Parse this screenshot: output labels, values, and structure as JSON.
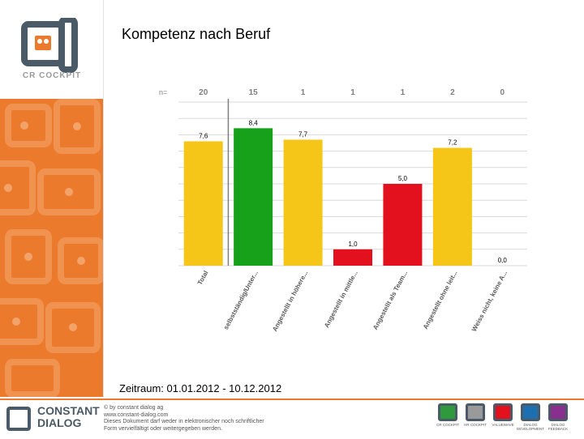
{
  "header": {
    "title": "Kompetenz nach Beruf",
    "date_range": "Zeitraum: 01.01.2012 - 10.12.2012"
  },
  "sidebar": {
    "logo_text": "CR COCKPIT"
  },
  "colors": {
    "accent": "#ec7a2c",
    "yellow": "#f5c518",
    "green": "#17a11b",
    "red": "#e3101d",
    "dark": "#4a5a66"
  },
  "chart_data": {
    "type": "bar",
    "n_label": "n=",
    "categories": [
      "Total",
      "selbstständig/Unter...",
      "Angestellt in höhere...",
      "Angestellt in mittle...",
      "Angestellt als Team...",
      "Angestellt ohne leit...",
      "Weiss nicht, keine A..."
    ],
    "n_values": [
      "20",
      "15",
      "1",
      "1",
      "1",
      "2",
      "0"
    ],
    "values": [
      7.6,
      8.4,
      7.7,
      1.0,
      5.0,
      7.2,
      0.0
    ],
    "value_labels": [
      "7,6",
      "8,4",
      "7,7",
      "1,0",
      "5,0",
      "7,2",
      "0,0"
    ],
    "bar_colors": [
      "#f5c518",
      "#17a11b",
      "#f5c518",
      "#e3101d",
      "#e3101d",
      "#f5c518",
      "#f5c518"
    ],
    "ylim": [
      0,
      10
    ],
    "grid": true,
    "title": "",
    "xlabel": "",
    "ylabel": ""
  },
  "footer": {
    "brand_line1": "CONSTANT",
    "brand_line2": "DIALOG",
    "note_lines": [
      "© by constant dialog ag",
      "www.constant-dialog.com",
      "Dieses Dokument darf weder in elektronischer noch schriftlicher",
      "Form vervielfältigt oder weitergegeben werden."
    ],
    "products": [
      "CR COCKPIT",
      "HR COCKPIT",
      "VALUEWAVE",
      "DIALOG DEVELOPMENT",
      "DIALOG FEEDBACK"
    ],
    "product_colors": [
      "#2e9a3c",
      "#9a9a9a",
      "#e3101d",
      "#1e6fb0",
      "#8b2f8e"
    ]
  }
}
